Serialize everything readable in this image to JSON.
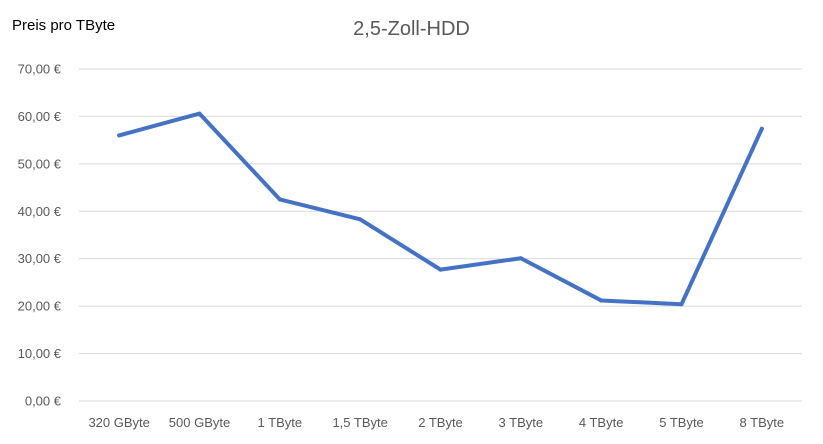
{
  "chart_data": {
    "type": "line",
    "title": "2,5-Zoll-HDD",
    "ylabel": "Preis pro TByte",
    "xlabel": "",
    "categories": [
      "320 GByte",
      "500 GByte",
      "1 TByte",
      "1,5 TByte",
      "2 TByte",
      "3 TByte",
      "4 TByte",
      "5 TByte",
      "8 TByte"
    ],
    "series": [
      {
        "values": [
          56.0,
          60.6,
          42.5,
          38.3,
          27.7,
          30.1,
          21.2,
          20.4,
          57.4
        ],
        "color": "#4472C4"
      }
    ],
    "ylim": [
      0,
      70
    ],
    "yticks": [
      0,
      10,
      20,
      30,
      40,
      50,
      60,
      70
    ],
    "ytick_labels": [
      "0,00 €",
      "10,00 €",
      "20,00 €",
      "30,00 €",
      "40,00 €",
      "50,00 €",
      "60,00 €",
      "70,00 €"
    ],
    "grid": true,
    "gridline_color": "#d9d9d9",
    "legend": "none"
  }
}
